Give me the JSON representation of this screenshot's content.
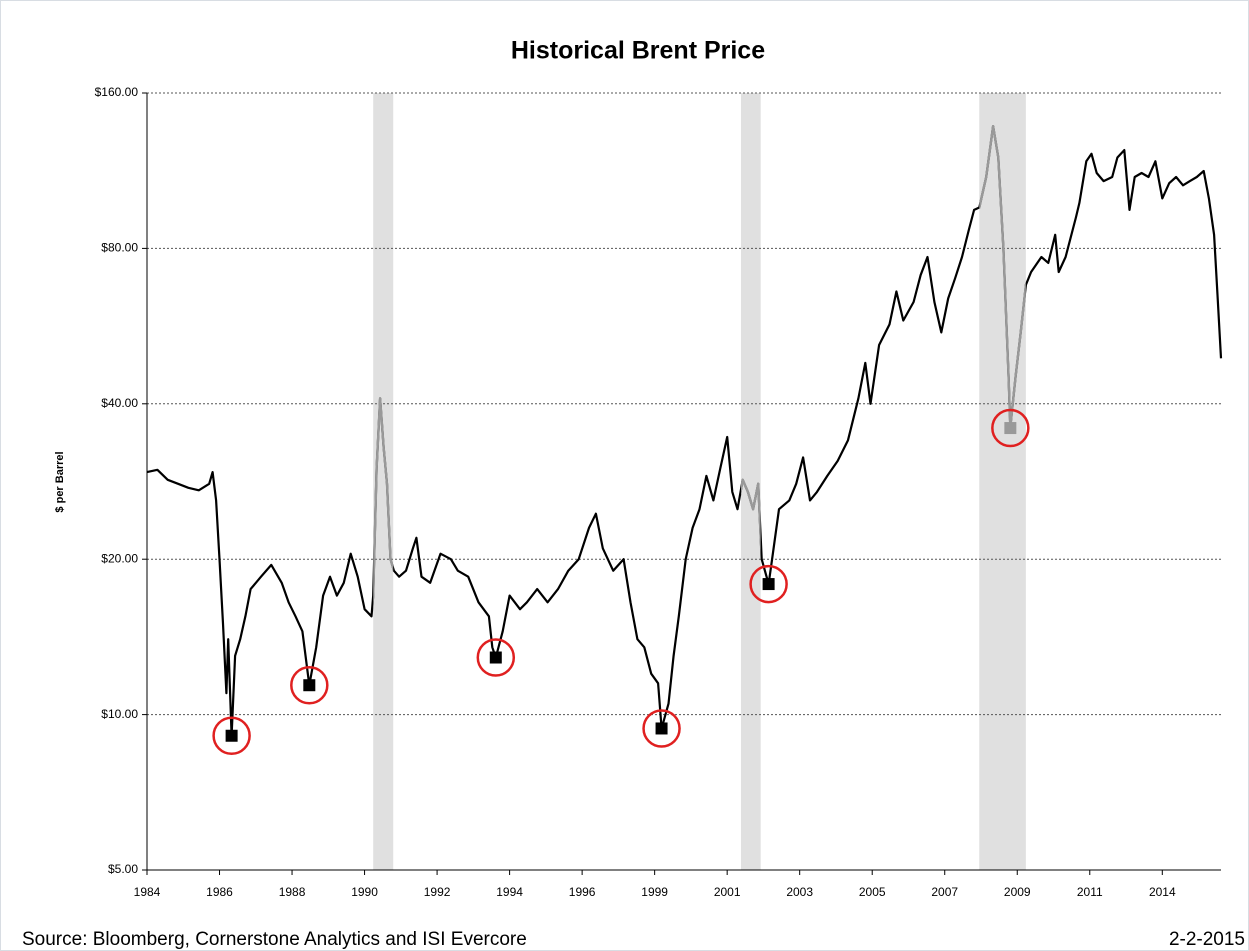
{
  "chart_data": {
    "type": "line",
    "title": "Historical Brent Price",
    "y_label": "$ per Barrel",
    "source": "Source: Bloomberg, Cornerstone Analytics and ISI Evercore",
    "date": "2-2-2015",
    "log_scale": true,
    "grid": true,
    "color": "#000000",
    "shaded_color": "#999999",
    "band_color": "#e0e0e0",
    "circle_color": "#e02020",
    "xlim": [
      1984,
      2015.1
    ],
    "ylim": [
      5,
      160
    ],
    "yticks": [
      {
        "value": 5,
        "label": "$5.00"
      },
      {
        "value": 10,
        "label": "$10.00"
      },
      {
        "value": 20,
        "label": "$20.00"
      },
      {
        "value": 40,
        "label": "$40.00"
      },
      {
        "value": 80,
        "label": "$80.00"
      },
      {
        "value": 160,
        "label": "$160.00"
      }
    ],
    "xticks": [
      {
        "value": 1984,
        "label": "1984"
      },
      {
        "value": 1986.1,
        "label": "1986"
      },
      {
        "value": 1988.2,
        "label": "1988"
      },
      {
        "value": 1990.3,
        "label": "1990"
      },
      {
        "value": 1992.4,
        "label": "1992"
      },
      {
        "value": 1994.5,
        "label": "1994"
      },
      {
        "value": 1996.6,
        "label": "1996"
      },
      {
        "value": 1998.7,
        "label": "1999"
      },
      {
        "value": 2000.8,
        "label": "2001"
      },
      {
        "value": 2002.9,
        "label": "2003"
      },
      {
        "value": 2005.0,
        "label": "2005"
      },
      {
        "value": 2007.1,
        "label": "2007"
      },
      {
        "value": 2009.2,
        "label": "2009"
      },
      {
        "value": 2011.3,
        "label": "2011"
      },
      {
        "value": 2013.4,
        "label": "2014"
      }
    ],
    "shaded_periods": [
      [
        1990.55,
        1991.13
      ],
      [
        2001.2,
        2001.77
      ],
      [
        2008.1,
        2009.45
      ]
    ],
    "x": [
      1984.0,
      1984.3,
      1984.6,
      1984.9,
      1985.2,
      1985.5,
      1985.8,
      1985.9,
      1986.0,
      1986.1,
      1986.2,
      1986.3,
      1986.35,
      1986.45,
      1986.55,
      1986.7,
      1986.85,
      1987.0,
      1987.3,
      1987.6,
      1987.9,
      1988.1,
      1988.3,
      1988.5,
      1988.7,
      1988.9,
      1989.1,
      1989.3,
      1989.5,
      1989.7,
      1989.9,
      1990.1,
      1990.3,
      1990.5,
      1990.55,
      1990.65,
      1990.75,
      1990.85,
      1990.95,
      1991.05,
      1991.15,
      1991.3,
      1991.5,
      1991.7,
      1991.8,
      1991.95,
      1992.2,
      1992.5,
      1992.8,
      1993.0,
      1993.3,
      1993.6,
      1993.9,
      1994.0,
      1994.1,
      1994.3,
      1994.5,
      1994.8,
      1995.0,
      1995.3,
      1995.6,
      1995.9,
      1996.2,
      1996.5,
      1996.8,
      1997.0,
      1997.2,
      1997.5,
      1997.8,
      1998.0,
      1998.2,
      1998.4,
      1998.6,
      1998.8,
      1998.9,
      1999.1,
      1999.25,
      1999.4,
      1999.6,
      1999.8,
      2000.0,
      2000.2,
      2000.4,
      2000.6,
      2000.8,
      2000.95,
      2001.1,
      2001.25,
      2001.4,
      2001.55,
      2001.7,
      2001.8,
      2002.0,
      2002.1,
      2002.3,
      2002.6,
      2002.8,
      2003.0,
      2003.2,
      2003.4,
      2003.7,
      2004.0,
      2004.3,
      2004.6,
      2004.8,
      2004.95,
      2005.2,
      2005.5,
      2005.7,
      2005.9,
      2006.2,
      2006.4,
      2006.6,
      2006.8,
      2007.0,
      2007.2,
      2007.4,
      2007.6,
      2007.8,
      2007.95,
      2008.1,
      2008.3,
      2008.5,
      2008.65,
      2008.8,
      2008.95,
      2009.0,
      2009.15,
      2009.3,
      2009.45,
      2009.6,
      2009.9,
      2010.1,
      2010.3,
      2010.4,
      2010.6,
      2010.9,
      2011.0,
      2011.2,
      2011.35,
      2011.5,
      2011.7,
      2011.95,
      2012.1,
      2012.3,
      2012.45,
      2012.6,
      2012.8,
      2013.0,
      2013.2,
      2013.4,
      2013.6,
      2013.8,
      2014.0,
      2014.2,
      2014.4,
      2014.6,
      2014.75,
      2014.9,
      2015.0,
      2015.1
    ],
    "values": [
      29.5,
      29.8,
      28.5,
      28.0,
      27.5,
      27.2,
      28.0,
      29.5,
      26.0,
      20.0,
      15.0,
      11.0,
      14.0,
      9.1,
      13.0,
      14.0,
      15.5,
      17.5,
      18.5,
      19.5,
      18.0,
      16.5,
      15.5,
      14.5,
      11.4,
      13.5,
      17.0,
      18.5,
      17.0,
      18.0,
      20.5,
      18.5,
      16.0,
      15.5,
      17.0,
      30.0,
      41.0,
      33.0,
      28.0,
      20.0,
      19.0,
      18.5,
      19.0,
      21.0,
      22.0,
      18.5,
      18.0,
      20.5,
      20.0,
      19.0,
      18.5,
      16.5,
      15.5,
      13.5,
      12.9,
      14.5,
      17.0,
      16.0,
      16.5,
      17.5,
      16.5,
      17.5,
      19.0,
      20.0,
      23.0,
      24.5,
      21.0,
      19.0,
      20.0,
      16.5,
      14.0,
      13.5,
      12.0,
      11.5,
      9.4,
      10.5,
      13.0,
      15.5,
      20.0,
      23.0,
      25.0,
      29.0,
      26.0,
      30.0,
      34.5,
      27.0,
      25.0,
      28.5,
      27.0,
      25.0,
      28.0,
      20.0,
      17.9,
      20.0,
      25.0,
      26.0,
      28.0,
      31.5,
      26.0,
      27.0,
      29.0,
      31.0,
      34.0,
      41.0,
      48.0,
      40.0,
      52.0,
      57.0,
      66.0,
      58.0,
      63.0,
      71.0,
      77.0,
      63.0,
      55.0,
      64.0,
      70.0,
      77.0,
      87.0,
      95.0,
      96.0,
      110.0,
      138.0,
      120.0,
      80.0,
      45.0,
      36.0,
      45.0,
      55.0,
      68.0,
      72.0,
      77.0,
      75.0,
      85.0,
      72.0,
      77.0,
      92.0,
      98.0,
      118.0,
      122.0,
      112.0,
      108.0,
      110.0,
      120.0,
      124.0,
      95.0,
      110.0,
      112.0,
      110.0,
      118.0,
      100.0,
      107.0,
      110.0,
      106.0,
      108.0,
      110.0,
      113.0,
      100.0,
      85.0,
      65.0,
      49.0
    ],
    "lows": {
      "x": [
        1986.45,
        1988.7,
        1994.1,
        1998.9,
        2002.0,
        2009.0
      ],
      "values": [
        9.1,
        11.4,
        12.9,
        9.4,
        17.9,
        35.9
      ]
    }
  }
}
